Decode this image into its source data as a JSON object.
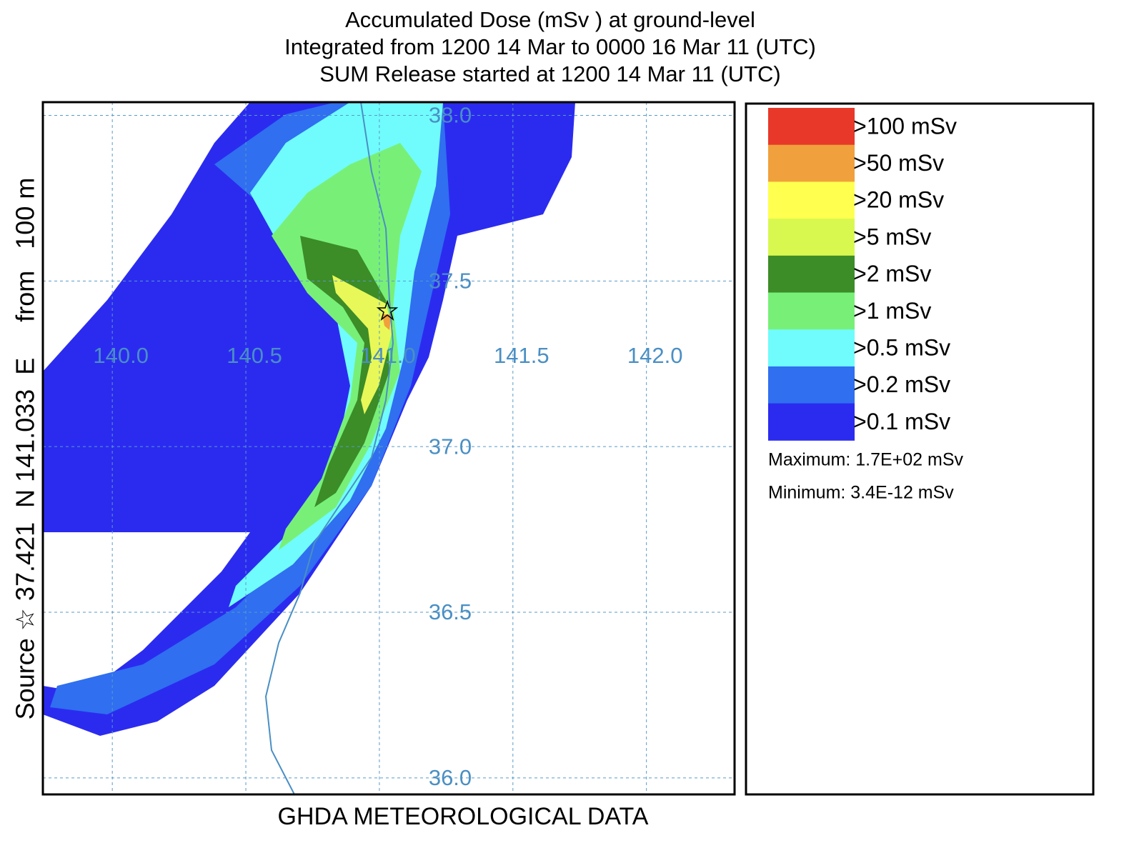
{
  "header": {
    "lines": [
      "Accumulated Dose  (mSv  ) at ground-level",
      "Integrated from 1200 14 Mar to 0000 16 Mar 11 (UTC)",
      "SUM  Release started at 1200 14 Mar 11 (UTC)"
    ]
  },
  "map": {
    "xlim": [
      139.74,
      142.33
    ],
    "ylim": [
      35.95,
      38.04
    ],
    "lon_ticks": [
      {
        "value": 140,
        "label": "140.0"
      },
      {
        "value": 140.5,
        "label": "140.5"
      },
      {
        "value": 141,
        "label": "141.0"
      },
      {
        "value": 141.5,
        "label": "141.5"
      },
      {
        "value": 142,
        "label": "142.0"
      }
    ],
    "lat_ticks": [
      {
        "value": 38,
        "label": "38.0"
      },
      {
        "value": 37.5,
        "label": "37.5"
      },
      {
        "value": 37,
        "label": "37.0"
      },
      {
        "value": 36.5,
        "label": "36.5"
      },
      {
        "value": 36,
        "label": "36.0"
      }
    ]
  },
  "side_label": "Source ☆ 37.421  N 141.033  E     from   100 m",
  "footer": "GHDA METEOROLOGICAL DATA",
  "legend": {
    "items": [
      {
        "label": ">100 mSv",
        "color": "#e8382a"
      },
      {
        "label": ">50 mSv",
        "color": "#f0a03c"
      },
      {
        "label": ">20 mSv",
        "color": "#ffff50"
      },
      {
        "label": ">5 mSv",
        "color": "#d8f850"
      },
      {
        "label": ">2 mSv",
        "color": "#3c8c28"
      },
      {
        "label": ">1 mSv",
        "color": "#78f078"
      },
      {
        "label": ">0.5 mSv",
        "color": "#70fcfc"
      },
      {
        "label": ">0.2 mSv",
        "color": "#2f6ff0"
      },
      {
        "label": ">0.1 mSv",
        "color": "#2b2bf0"
      }
    ],
    "maximum": "Maximum: 1.7E+02 mSv",
    "minimum": "Minimum: 3.4E-12 mSv"
  }
}
